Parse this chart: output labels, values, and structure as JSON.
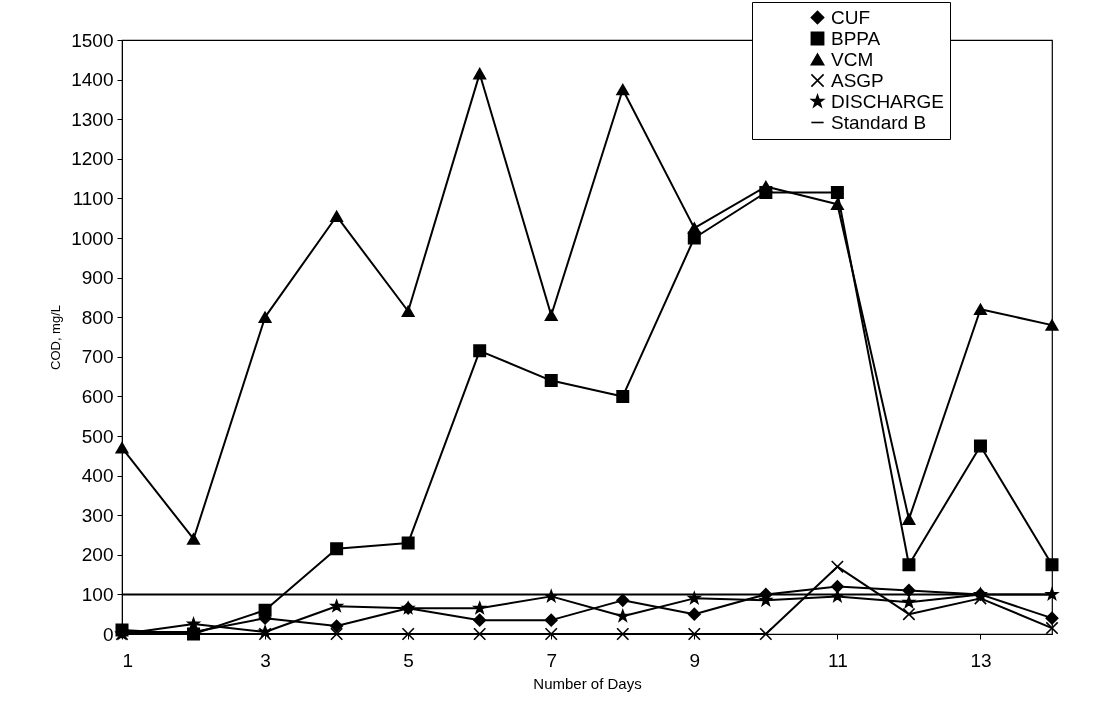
{
  "chart_data": {
    "type": "line",
    "xlabel": "Number of Days",
    "ylabel": "COD, mg/L",
    "x": [
      1,
      2,
      3,
      4,
      5,
      6,
      7,
      8,
      9,
      10,
      11,
      12,
      13,
      14
    ],
    "xlim": [
      1,
      14
    ],
    "xticks": [
      1,
      3,
      5,
      7,
      9,
      11,
      13
    ],
    "ylim": [
      0,
      1500
    ],
    "yticks": [
      0,
      100,
      200,
      300,
      400,
      500,
      600,
      700,
      800,
      900,
      1000,
      1100,
      1200,
      1300,
      1400,
      1500
    ],
    "grid": false,
    "legend": "top right",
    "line_style": "solid",
    "series": [
      {
        "name": "CUF",
        "color": "#000000",
        "marker": "diamond",
        "values": [
          5,
          5,
          40,
          20,
          65,
          35,
          35,
          85,
          50,
          100,
          120,
          110,
          100,
          40
        ]
      },
      {
        "name": "BPPA",
        "color": "#000000",
        "marker": "square",
        "values": [
          10,
          0,
          60,
          215,
          230,
          715,
          640,
          600,
          1000,
          1115,
          1115,
          175,
          475,
          175
        ]
      },
      {
        "name": "VCM",
        "color": "#000000",
        "marker": "triangle",
        "values": [
          470,
          240,
          800,
          1055,
          815,
          1415,
          805,
          1375,
          1025,
          1130,
          1085,
          290,
          820,
          780
        ]
      },
      {
        "name": "ASGP",
        "color": "#000000",
        "marker": "cross",
        "values": [
          0,
          0,
          0,
          0,
          0,
          0,
          0,
          0,
          0,
          0,
          170,
          50,
          90,
          15
        ]
      },
      {
        "name": "DISCHARGE",
        "color": "#000000",
        "marker": "star",
        "values": [
          0,
          25,
          5,
          70,
          65,
          65,
          95,
          45,
          90,
          85,
          95,
          80,
          100,
          100
        ]
      },
      {
        "name": "Standard B",
        "color": "#000000",
        "marker": "none",
        "values": [
          100,
          100,
          100,
          100,
          100,
          100,
          100,
          100,
          100,
          100,
          100,
          100,
          100,
          100
        ]
      }
    ]
  }
}
